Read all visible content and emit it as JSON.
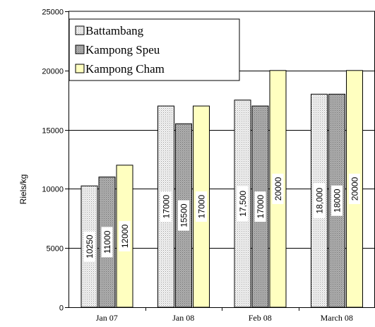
{
  "chart_data": {
    "type": "bar",
    "title": "",
    "xlabel": "",
    "ylabel": "Riels/kg",
    "ylim": [
      0,
      25000
    ],
    "yticks": [
      0,
      5000,
      10000,
      15000,
      20000,
      25000
    ],
    "grid": true,
    "legend_position": "top-left",
    "categories": [
      "Jan 07",
      "Jan 08",
      "Feb 08",
      "March 08"
    ],
    "series": [
      {
        "name": "Battambang",
        "values": [
          10250,
          17000,
          17500,
          18000
        ],
        "labels": [
          "10250",
          "17000",
          "17,500",
          "18,000"
        ],
        "color": "#e4e4e4",
        "pattern": "dots-light"
      },
      {
        "name": "Kampong Speu",
        "values": [
          11000,
          15500,
          17000,
          18000
        ],
        "labels": [
          "11000",
          "15500",
          "17000",
          "18000"
        ],
        "color": "#a6a6a6",
        "pattern": "dots-dark"
      },
      {
        "name": "Kampong Cham",
        "values": [
          12000,
          17000,
          20000,
          20000
        ],
        "labels": [
          "12000",
          "17000",
          "20000",
          "20000"
        ],
        "color": "#ffffc0",
        "pattern": "solid"
      }
    ]
  }
}
